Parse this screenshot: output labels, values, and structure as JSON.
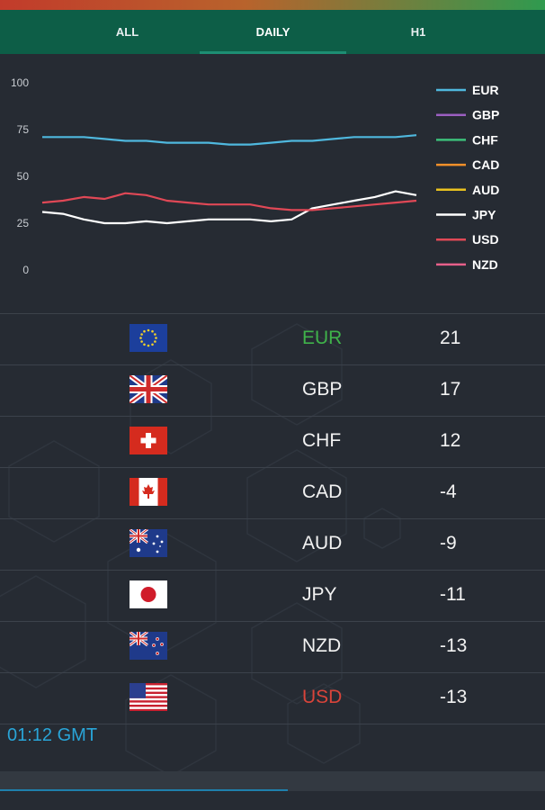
{
  "tabs": [
    {
      "label": "ALL"
    },
    {
      "label": "DAILY",
      "active": true
    },
    {
      "label": "H1"
    }
  ],
  "chart_data": {
    "type": "line",
    "ylim": [
      0,
      100
    ],
    "yticks": [
      "100",
      "75",
      "50",
      "25",
      "0"
    ],
    "legend_position": "right",
    "grid": false,
    "series": [
      {
        "name": "EUR",
        "color": "#4fb8de",
        "values": [
          71,
          71,
          71,
          70,
          69,
          69,
          68,
          68,
          68,
          67,
          67,
          68,
          69,
          69,
          70,
          71,
          71,
          71,
          72
        ]
      },
      {
        "name": "GBP",
        "color": "#9b5fc0",
        "values": []
      },
      {
        "name": "CHF",
        "color": "#3cbf7a",
        "values": []
      },
      {
        "name": "CAD",
        "color": "#f0902a",
        "values": []
      },
      {
        "name": "AUD",
        "color": "#e9c21f",
        "values": []
      },
      {
        "name": "JPY",
        "color": "#ffffff",
        "values": [
          31,
          30,
          27,
          25,
          25,
          26,
          25,
          26,
          27,
          27,
          27,
          26,
          27,
          33,
          35,
          37,
          39,
          42,
          40
        ]
      },
      {
        "name": "USD",
        "color": "#e04856",
        "values": [
          36,
          37,
          39,
          38,
          41,
          40,
          37,
          36,
          35,
          35,
          35,
          33,
          32,
          32,
          33,
          34,
          35,
          36,
          37
        ]
      },
      {
        "name": "NZD",
        "color": "#e6608a",
        "values": []
      }
    ]
  },
  "rows": [
    {
      "flag": "eu",
      "code": "EUR",
      "value": "21",
      "code_color": "#3fb24a"
    },
    {
      "flag": "gb",
      "code": "GBP",
      "value": "17",
      "code_color": "#f2f2f2"
    },
    {
      "flag": "ch",
      "code": "CHF",
      "value": "12",
      "code_color": "#f2f2f2"
    },
    {
      "flag": "ca",
      "code": "CAD",
      "value": "-4",
      "code_color": "#f2f2f2"
    },
    {
      "flag": "au",
      "code": "AUD",
      "value": "-9",
      "code_color": "#f2f2f2"
    },
    {
      "flag": "jp",
      "code": "JPY",
      "value": "-11",
      "code_color": "#f2f2f2"
    },
    {
      "flag": "nz",
      "code": "NZD",
      "value": "-13",
      "code_color": "#f2f2f2"
    },
    {
      "flag": "us",
      "code": "USD",
      "value": "-13",
      "code_color": "#d9443a"
    }
  ],
  "time": "01:12 GMT"
}
